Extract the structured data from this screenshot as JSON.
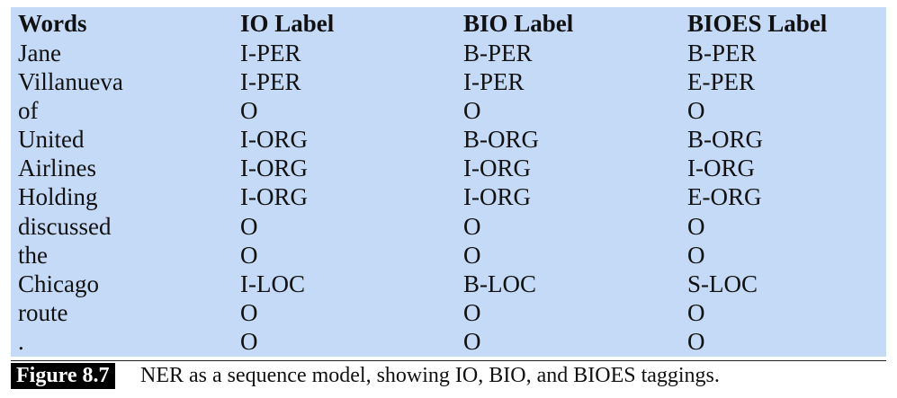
{
  "table": {
    "headers": [
      "Words",
      "IO Label",
      "BIO Label",
      "BIOES Label"
    ],
    "rows": [
      [
        "Jane",
        "I-PER",
        "B-PER",
        "B-PER"
      ],
      [
        "Villanueva",
        "I-PER",
        "I-PER",
        "E-PER"
      ],
      [
        "of",
        "O",
        "O",
        "O"
      ],
      [
        "United",
        "I-ORG",
        "B-ORG",
        "B-ORG"
      ],
      [
        "Airlines",
        "I-ORG",
        "I-ORG",
        "I-ORG"
      ],
      [
        "Holding",
        "I-ORG",
        "I-ORG",
        "E-ORG"
      ],
      [
        "discussed",
        "O",
        "O",
        "O"
      ],
      [
        "the",
        "O",
        "O",
        "O"
      ],
      [
        "Chicago",
        "I-LOC",
        "B-LOC",
        "S-LOC"
      ],
      [
        "route",
        "O",
        "O",
        "O"
      ],
      [
        ".",
        "O",
        "O",
        "O"
      ]
    ]
  },
  "caption": {
    "label": "Figure 8.7",
    "text": "NER as a sequence model, showing IO, BIO, and BIOES taggings."
  },
  "colors": {
    "table_background": "#c4daf7",
    "caption_label_background": "#000000"
  }
}
